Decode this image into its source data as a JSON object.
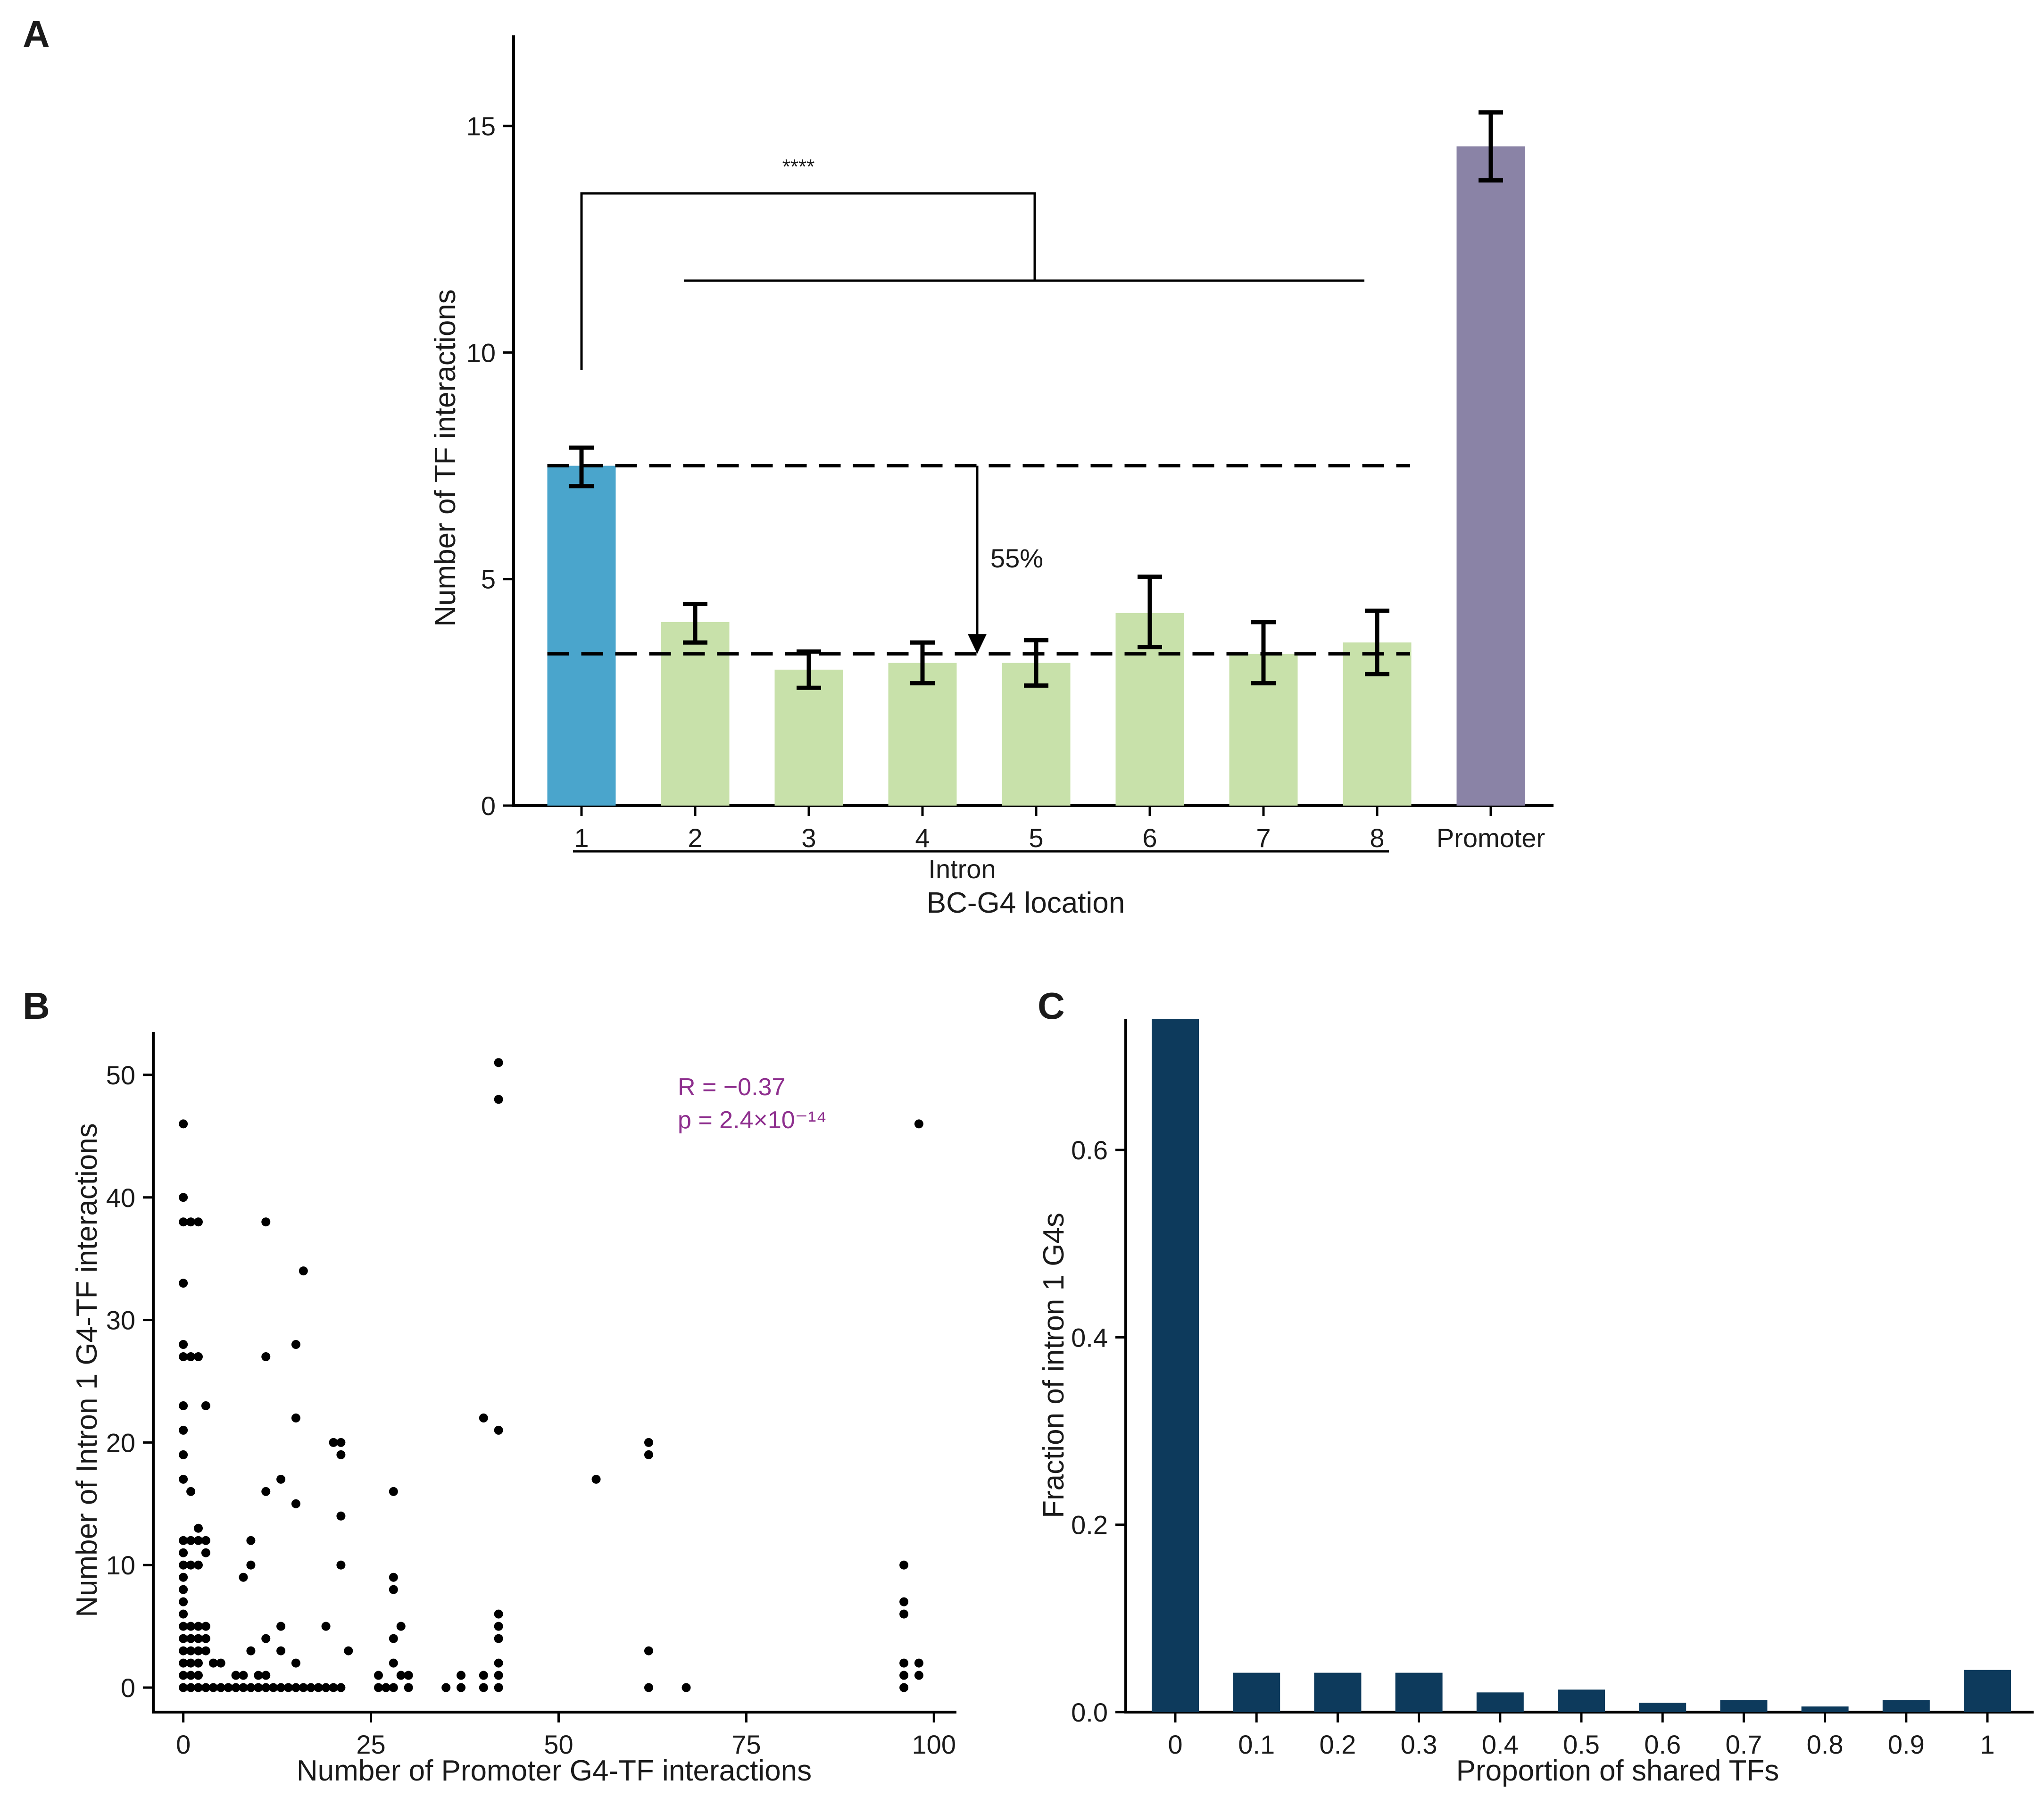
{
  "chart_data": [
    {
      "panel": "A",
      "type": "bar",
      "ylabel": "Number of TF interactions",
      "xlabel": "BC-G4 location",
      "group_label": "Intron",
      "categories": [
        "1",
        "2",
        "3",
        "4",
        "5",
        "6",
        "7",
        "8",
        "Promoter"
      ],
      "values": [
        7.5,
        4.05,
        3.0,
        3.15,
        3.15,
        4.25,
        3.35,
        3.6,
        14.55
      ],
      "err_low": [
        7.05,
        3.6,
        2.6,
        2.7,
        2.65,
        3.5,
        2.7,
        2.9,
        13.8
      ],
      "err_high": [
        7.9,
        4.45,
        3.4,
        3.6,
        3.65,
        5.05,
        4.05,
        4.3,
        15.3
      ],
      "colors": [
        "#4aa5cc",
        "#c8e1aa",
        "#c8e1aa",
        "#c8e1aa",
        "#c8e1aa",
        "#c8e1aa",
        "#c8e1aa",
        "#c8e1aa",
        "#8a83a6"
      ],
      "ylim": [
        0,
        17
      ],
      "yticks": [
        0,
        5,
        10,
        15
      ],
      "reference_lines": [
        7.5,
        3.35
      ],
      "annotations": {
        "significance": "****",
        "reduction": "55%"
      }
    },
    {
      "panel": "B",
      "type": "scatter",
      "xlabel": "Number of Promoter G4-TF interactions",
      "ylabel": "Number of Intron 1 G4-TF interactions",
      "xticks": [
        0,
        25,
        50,
        75,
        100
      ],
      "yticks": [
        0,
        10,
        20,
        30,
        40,
        50
      ],
      "xlim": [
        -4,
        103
      ],
      "ylim": [
        -2,
        53.5
      ],
      "stat_r": "R = −0.37",
      "stat_p": "p = 2.4×10⁻¹⁴",
      "stat_color": "#8e2f8e",
      "points": [
        [
          0,
          46
        ],
        [
          0,
          40
        ],
        [
          0,
          38
        ],
        [
          0,
          33
        ],
        [
          0,
          28
        ],
        [
          0,
          27
        ],
        [
          0,
          23
        ],
        [
          0,
          21
        ],
        [
          0,
          19
        ],
        [
          0,
          17
        ],
        [
          0,
          12
        ],
        [
          0,
          11
        ],
        [
          0,
          10
        ],
        [
          0,
          9
        ],
        [
          0,
          8
        ],
        [
          0,
          7
        ],
        [
          0,
          6
        ],
        [
          0,
          5
        ],
        [
          0,
          4
        ],
        [
          0,
          3
        ],
        [
          0,
          2
        ],
        [
          0,
          1
        ],
        [
          0,
          0
        ],
        [
          1,
          38
        ],
        [
          1,
          27
        ],
        [
          1,
          16
        ],
        [
          1,
          12
        ],
        [
          1,
          10
        ],
        [
          1,
          5
        ],
        [
          1,
          4
        ],
        [
          1,
          3
        ],
        [
          1,
          2
        ],
        [
          1,
          1
        ],
        [
          1,
          0
        ],
        [
          2,
          38
        ],
        [
          2,
          27
        ],
        [
          2,
          13
        ],
        [
          2,
          12
        ],
        [
          2,
          10
        ],
        [
          2,
          5
        ],
        [
          2,
          4
        ],
        [
          2,
          3
        ],
        [
          2,
          2
        ],
        [
          2,
          1
        ],
        [
          2,
          0
        ],
        [
          3,
          23
        ],
        [
          3,
          12
        ],
        [
          3,
          11
        ],
        [
          3,
          5
        ],
        [
          3,
          4
        ],
        [
          3,
          3
        ],
        [
          3,
          0
        ],
        [
          4,
          2
        ],
        [
          4,
          0
        ],
        [
          5,
          2
        ],
        [
          5,
          0
        ],
        [
          6,
          0
        ],
        [
          7,
          1
        ],
        [
          7,
          0
        ],
        [
          8,
          9
        ],
        [
          8,
          1
        ],
        [
          8,
          0
        ],
        [
          9,
          12
        ],
        [
          9,
          10
        ],
        [
          9,
          3
        ],
        [
          9,
          0
        ],
        [
          10,
          1
        ],
        [
          10,
          0
        ],
        [
          11,
          38
        ],
        [
          11,
          27
        ],
        [
          11,
          16
        ],
        [
          11,
          4
        ],
        [
          11,
          1
        ],
        [
          11,
          0
        ],
        [
          12,
          0
        ],
        [
          13,
          17
        ],
        [
          13,
          5
        ],
        [
          13,
          3
        ],
        [
          13,
          0
        ],
        [
          14,
          0
        ],
        [
          15,
          28
        ],
        [
          15,
          22
        ],
        [
          15,
          15
        ],
        [
          15,
          2
        ],
        [
          15,
          0
        ],
        [
          16,
          34
        ],
        [
          16,
          0
        ],
        [
          17,
          0
        ],
        [
          18,
          0
        ],
        [
          19,
          5
        ],
        [
          19,
          0
        ],
        [
          20,
          20
        ],
        [
          20,
          0
        ],
        [
          21,
          20
        ],
        [
          21,
          19
        ],
        [
          21,
          14
        ],
        [
          21,
          10
        ],
        [
          21,
          0
        ],
        [
          22,
          3
        ],
        [
          26,
          1
        ],
        [
          26,
          0
        ],
        [
          27,
          0
        ],
        [
          28,
          16
        ],
        [
          28,
          9
        ],
        [
          28,
          8
        ],
        [
          28,
          4
        ],
        [
          28,
          2
        ],
        [
          28,
          0
        ],
        [
          29,
          5
        ],
        [
          29,
          1
        ],
        [
          30,
          1
        ],
        [
          30,
          0
        ],
        [
          35,
          0
        ],
        [
          37,
          1
        ],
        [
          37,
          0
        ],
        [
          40,
          22
        ],
        [
          40,
          1
        ],
        [
          40,
          0
        ],
        [
          42,
          51
        ],
        [
          42,
          48
        ],
        [
          42,
          21
        ],
        [
          42,
          6
        ],
        [
          42,
          5
        ],
        [
          42,
          4
        ],
        [
          42,
          2
        ],
        [
          42,
          1
        ],
        [
          42,
          0
        ],
        [
          55,
          17
        ],
        [
          62,
          20
        ],
        [
          62,
          19
        ],
        [
          62,
          3
        ],
        [
          62,
          0
        ],
        [
          67,
          0
        ],
        [
          96,
          10
        ],
        [
          96,
          7
        ],
        [
          96,
          6
        ],
        [
          96,
          2
        ],
        [
          96,
          1
        ],
        [
          96,
          0
        ],
        [
          98,
          46
        ],
        [
          98,
          2
        ],
        [
          98,
          1
        ]
      ]
    },
    {
      "panel": "C",
      "type": "bar",
      "xlabel": "Proportion of shared TFs",
      "ylabel": "Fraction of intron 1 G4s",
      "categories": [
        "0",
        "0.1",
        "0.2",
        "0.3",
        "0.4",
        "0.5",
        "0.6",
        "0.7",
        "0.8",
        "0.9",
        "1"
      ],
      "values": [
        0.74,
        0.042,
        0.042,
        0.042,
        0.021,
        0.024,
        0.01,
        0.013,
        0.006,
        0.013,
        0.045
      ],
      "color": "#0d3a5c",
      "ylim": [
        0,
        0.74
      ],
      "yticks": [
        "0.0",
        "0.2",
        "0.4",
        "0.6"
      ]
    }
  ]
}
